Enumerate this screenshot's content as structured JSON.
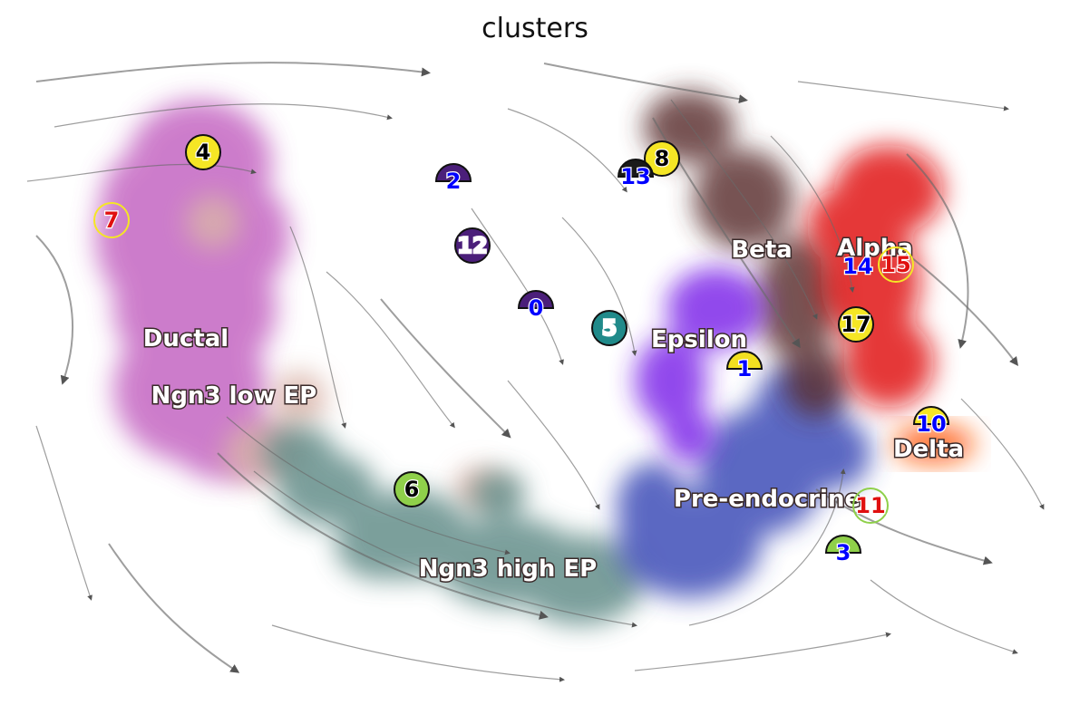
{
  "chart_data": {
    "type": "scatter",
    "title": "clusters",
    "xlabel": "",
    "ylabel": "",
    "grid": false,
    "axes_visible": false,
    "overlay": "velocity streamlines",
    "clusters": [
      {
        "name": "Ductal",
        "color": "#c261c0"
      },
      {
        "name": "Ngn3 low EP",
        "color": "#d9b3a8"
      },
      {
        "name": "Ngn3 high EP",
        "color": "#5e8a86"
      },
      {
        "name": "Pre-endocrine",
        "color": "#3847b5"
      },
      {
        "name": "Beta",
        "color": "#5a2f2f"
      },
      {
        "name": "Alpha",
        "color": "#e01010"
      },
      {
        "name": "Delta",
        "color": "#ff5a10"
      },
      {
        "name": "Epsilon",
        "color": "#7a20e8"
      }
    ],
    "markers": [
      {
        "label": "0",
        "color": "#4b1f7a",
        "text_color": "#0000ff",
        "shape": "half"
      },
      {
        "label": "1",
        "color": "#f2e020",
        "text_color": "#0000ff",
        "shape": "half"
      },
      {
        "label": "2",
        "color": "#4b1f7a",
        "text_color": "#0000ff",
        "shape": "half"
      },
      {
        "label": "3",
        "color": "#8fd04a",
        "text_color": "#0000ff",
        "shape": "half"
      },
      {
        "label": "4",
        "color": "#f5e625",
        "text_color": "#000000",
        "shape": "circle"
      },
      {
        "label": "5",
        "color": "#208a8a",
        "text_color": "#ffffff",
        "shape": "circle"
      },
      {
        "label": "6",
        "color": "#8fd04a",
        "text_color": "#000000",
        "shape": "circle"
      },
      {
        "label": "7",
        "color": "none",
        "text_color": "#e01010",
        "shape": "ring",
        "ring_color": "#f5e625"
      },
      {
        "label": "8",
        "color": "#f5e625",
        "text_color": "#000000",
        "shape": "circle"
      },
      {
        "label": "10",
        "color": "#f5e625",
        "text_color": "#0000ff",
        "shape": "half"
      },
      {
        "label": "11",
        "color": "none",
        "text_color": "#e01010",
        "shape": "ring",
        "ring_color": "#8fd04a"
      },
      {
        "label": "12",
        "color": "#4b1f7a",
        "text_color": "#ffffff",
        "shape": "circle"
      },
      {
        "label": "13",
        "color": "#1a1a1a",
        "text_color": "#0000ff",
        "shape": "half"
      },
      {
        "label": "14",
        "color": "none",
        "text_color": "#0000ff",
        "shape": "text"
      },
      {
        "label": "15",
        "color": "none",
        "text_color": "#e01010",
        "shape": "ring",
        "ring_color": "#f5e625"
      },
      {
        "label": "17",
        "color": "#f5e625",
        "text_color": "#000000",
        "shape": "circle"
      }
    ]
  }
}
